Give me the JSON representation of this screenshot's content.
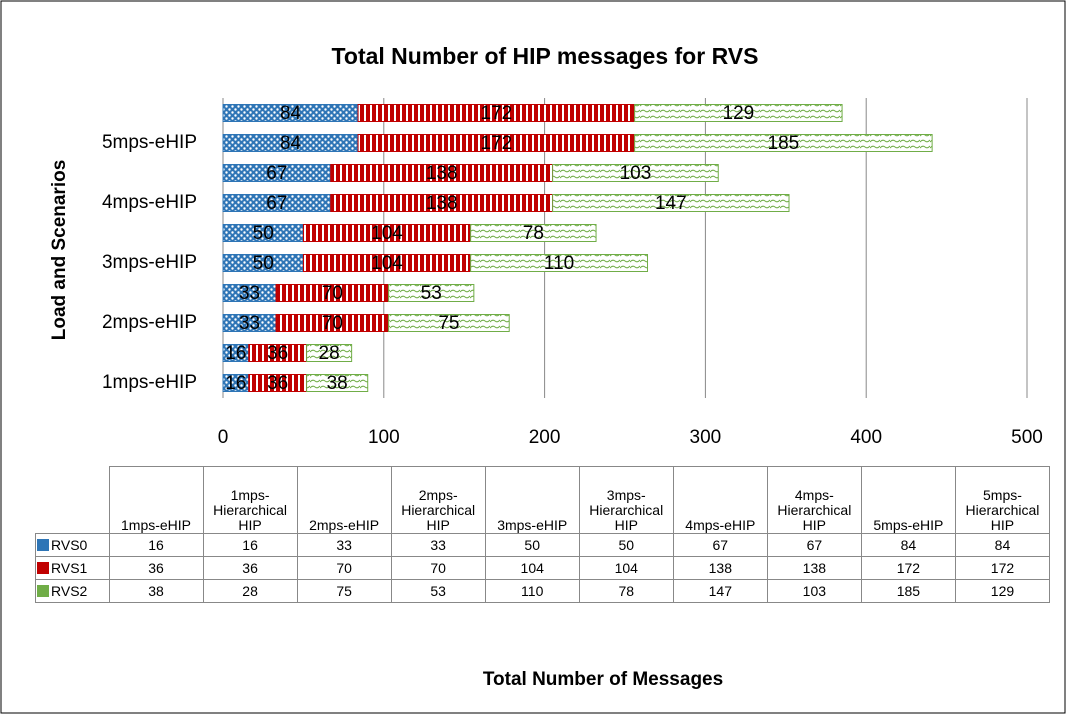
{
  "chart_data": {
    "type": "stacked-barh",
    "title": "Total Number of HIP messages for RVS",
    "ylabel": "Load and Scenarios",
    "xlabel": "Total Number of Messages",
    "categories": [
      "1mps-eHIP",
      "1mps-Hierarchical HIP",
      "2mps-eHIP",
      "2mps-Hierarchical HIP",
      "3mps-eHIP",
      "3mps-Hierarchical HIP",
      "4mps-eHIP",
      "4mps-Hierarchical HIP",
      "5mps-eHIP",
      "5mps-Hierarchical HIP"
    ],
    "series": [
      {
        "name": "RVS0",
        "color": "#2e75b6",
        "values": [
          16,
          16,
          33,
          33,
          50,
          50,
          67,
          67,
          84,
          84
        ]
      },
      {
        "name": "RVS1",
        "color": "#c00000",
        "values": [
          36,
          36,
          70,
          70,
          104,
          104,
          138,
          138,
          172,
          172
        ]
      },
      {
        "name": "RVS2",
        "color": "#70ad47",
        "values": [
          38,
          28,
          75,
          53,
          110,
          78,
          147,
          103,
          185,
          129
        ]
      }
    ],
    "xlim": [
      0,
      500
    ],
    "xticks": [
      0,
      100,
      200,
      300,
      400,
      500
    ],
    "grid": true
  }
}
